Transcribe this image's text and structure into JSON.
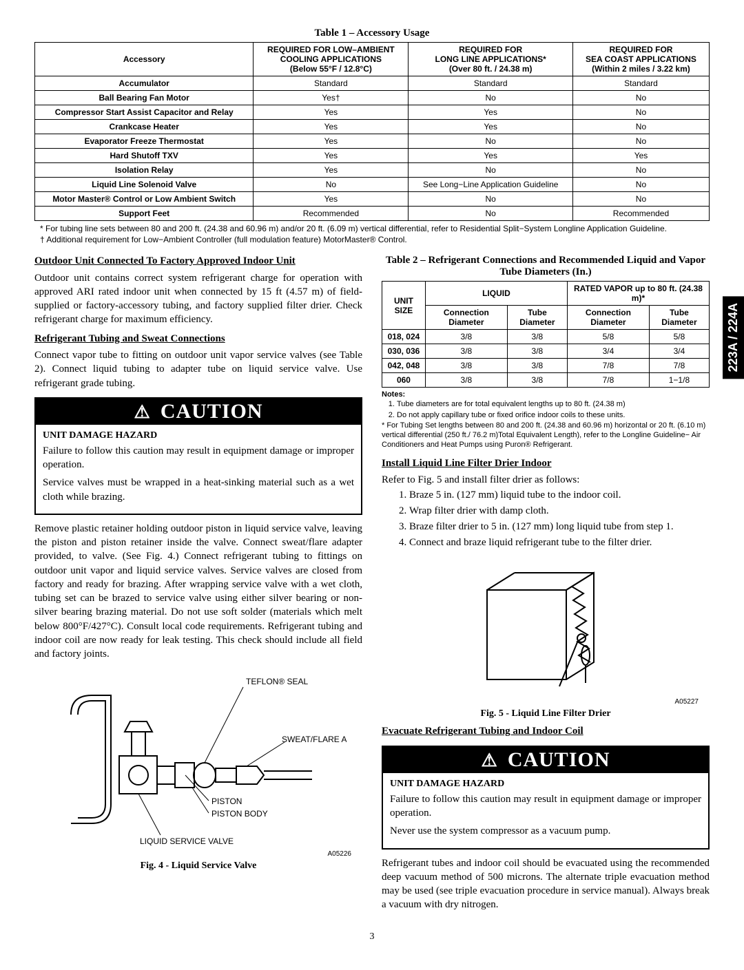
{
  "sideTab": "223A / 224A",
  "table1": {
    "title": "Table 1 – Accessory Usage",
    "headers": {
      "c1": "Accessory",
      "c2": [
        "REQUIRED FOR LOW–AMBIENT",
        "COOLING APPLICATIONS",
        "(Below 55°F / 12.8°C)"
      ],
      "c3": [
        "REQUIRED FOR",
        "LONG LINE APPLICATIONS*",
        "(Over 80 ft. / 24.38 m)"
      ],
      "c4": [
        "REQUIRED FOR",
        "SEA COAST APPLICATIONS",
        "(Within 2 miles / 3.22 km)"
      ]
    },
    "rows": [
      [
        "Accumulator",
        "Standard",
        "Standard",
        "Standard"
      ],
      [
        "Ball Bearing Fan Motor",
        "Yes†",
        "No",
        "No"
      ],
      [
        "Compressor Start Assist Capacitor and Relay",
        "Yes",
        "Yes",
        "No"
      ],
      [
        "Crankcase Heater",
        "Yes",
        "Yes",
        "No"
      ],
      [
        "Evaporator Freeze Thermostat",
        "Yes",
        "No",
        "No"
      ],
      [
        "Hard Shutoff TXV",
        "Yes",
        "Yes",
        "Yes"
      ],
      [
        "Isolation Relay",
        "Yes",
        "No",
        "No"
      ],
      [
        "Liquid Line Solenoid Valve",
        "No",
        "See Long−Line Application Guideline",
        "No"
      ],
      [
        "Motor Master® Control or Low Ambient Switch",
        "Yes",
        "No",
        "No"
      ],
      [
        "Support Feet",
        "Recommended",
        "No",
        "Recommended"
      ]
    ],
    "footnote1": "* For tubing line sets between 80 and 200 ft. (24.38 and 60.96 m)  and/or 20 ft. (6.09 m) vertical differential, refer to Residential Split−System Longline Application Guideline.",
    "footnote2": "† Additional requirement for Low−Ambient Controller (full modulation feature) MotorMaster® Control."
  },
  "left": {
    "h1": "Outdoor Unit Connected To Factory Approved Indoor Unit",
    "p1": "Outdoor unit contains correct system refrigerant charge for operation with approved ARI rated indoor unit when connected by 15 ft (4.57 m) of field-supplied or factory-accessory tubing, and factory supplied filter drier. Check refrigerant charge for maximum efficiency.",
    "h2": "Refrigerant Tubing and Sweat Connections",
    "p2": "Connect vapor tube to fitting on outdoor unit vapor service valves (see Table 2). Connect liquid tubing to adapter tube on liquid service valve. Use refrigerant grade tubing.",
    "caution1": {
      "label": "CAUTION",
      "hazard": "UNIT DAMAGE HAZARD",
      "p1": "Failure to follow this caution may result in equipment damage or improper operation.",
      "p2": "Service valves must be wrapped in a heat-sinking material such as a wet cloth while brazing."
    },
    "p3": "Remove plastic retainer holding outdoor piston in liquid service valve, leaving the piston and piston retainer inside the valve. Connect sweat/flare adapter provided, to valve. (See Fig. 4.) Connect refrigerant tubing to fittings on outdoor unit vapor and liquid service valves. Service valves are closed from factory and ready for brazing. After wrapping service valve with a wet cloth, tubing set can be brazed to service valve using either silver bearing or non-silver bearing brazing material. Do not use soft solder (materials which melt below 800°F/427°C). Consult local code requirements. Refrigerant tubing and indoor coil are now ready for leak testing. This check should include all field and factory joints.",
    "fig4": {
      "labels": {
        "teflon": "TEFLON® SEAL",
        "sweat": "SWEAT/FLARE ADAPTER",
        "piston": "PISTON",
        "pistonBody": "PISTON BODY",
        "lsv": "LIQUID SERVICE VALVE"
      },
      "code": "A05226",
      "caption": "Fig. 4 - Liquid Service Valve"
    }
  },
  "right": {
    "table2": {
      "title": "Table 2 – Refrigerant Connections and Recommended Liquid and Vapor Tube Diameters (In.)",
      "h_unit": "UNIT SIZE",
      "h_liquid": "LIQUID",
      "h_vapor": "RATED VAPOR up to 80 ft. (24.38 m)*",
      "h_cd": "Connection Diameter",
      "h_td": "Tube Diameter",
      "rows": [
        [
          "018, 024",
          "3/8",
          "3/8",
          "5/8",
          "5/8"
        ],
        [
          "030, 036",
          "3/8",
          "3/8",
          "3/4",
          "3/4"
        ],
        [
          "042, 048",
          "3/8",
          "3/8",
          "7/8",
          "7/8"
        ],
        [
          "060",
          "3/8",
          "3/8",
          "7/8",
          "1−1/8"
        ]
      ],
      "notesLabel": "Notes:",
      "note1": "Tube diameters are for total equivalent lengths up to 80 ft. (24.38 m)",
      "note2": "Do not apply capillary tube or fixed orifice indoor coils to these units.",
      "noteStar": "*   For Tubing Set lengths between 80 and 200 ft. (24.38 and 60.96 m) horizontal or 20 ft. (6.10 m) vertical differential (250 ft./ 76.2 m)Total Equivalent Length), refer to the Longline Guideline− Air Conditioners and Heat Pumps using Puron® Refrigerant."
    },
    "h3": "Install Liquid Line Filter Drier Indoor",
    "p4": "Refer to Fig. 5 and install filter drier as follows:",
    "steps": [
      "Braze 5 in. (127 mm) liquid tube to the indoor coil.",
      "Wrap filter drier with damp cloth.",
      "Braze filter drier to 5 in. (127 mm) long liquid tube from step 1.",
      "Connect and braze liquid refrigerant tube to the filter drier."
    ],
    "fig5": {
      "code": "A05227",
      "caption": "Fig. 5 - Liquid Line Filter Drier"
    },
    "h4": "Evacuate Refrigerant Tubing and Indoor Coil",
    "caution2": {
      "label": "CAUTION",
      "hazard": "UNIT DAMAGE HAZARD",
      "p1": "Failure to follow this caution may result in equipment damage or improper operation.",
      "p2": "Never use the system compressor as a vacuum pump."
    },
    "p5": "Refrigerant tubes and indoor coil should be evacuated using the recommended deep vacuum method of 500 microns. The alternate triple evacuation method may be used (see triple evacuation procedure in service manual). Always break a vacuum with dry nitrogen."
  },
  "pageNum": "3"
}
